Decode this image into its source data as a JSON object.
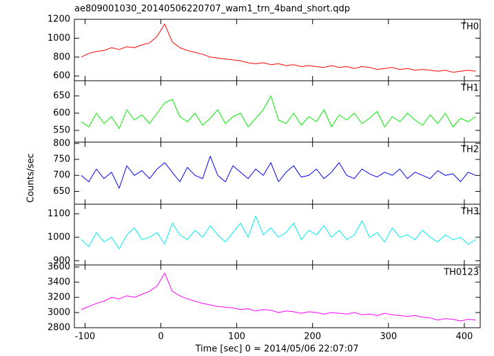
{
  "chart_data": [
    {
      "type": "line",
      "title": "ae809001030_20140506220707_wam1_trn_4band_short.qdp",
      "label": "TH0",
      "color": "#ff0000",
      "x": [
        -105,
        -95,
        -85,
        -75,
        -65,
        -55,
        -45,
        -35,
        -25,
        -15,
        -5,
        5,
        15,
        25,
        35,
        45,
        55,
        65,
        75,
        85,
        95,
        105,
        115,
        125,
        135,
        145,
        155,
        165,
        175,
        185,
        195,
        205,
        215,
        225,
        235,
        245,
        255,
        265,
        275,
        285,
        295,
        305,
        315,
        325,
        335,
        345,
        355,
        365,
        375,
        385,
        395,
        405,
        415
      ],
      "values": [
        800,
        840,
        860,
        870,
        900,
        880,
        910,
        900,
        930,
        950,
        1020,
        1150,
        960,
        900,
        870,
        850,
        830,
        800,
        790,
        780,
        770,
        760,
        740,
        730,
        740,
        720,
        730,
        710,
        720,
        700,
        710,
        700,
        690,
        710,
        690,
        700,
        680,
        700,
        690,
        670,
        680,
        690,
        670,
        680,
        660,
        670,
        660,
        650,
        660,
        640,
        650,
        660,
        650
      ],
      "xlim": [
        -114,
        421
      ],
      "xticks": [
        -100,
        0,
        100,
        200,
        300,
        400
      ],
      "ylim": [
        550,
        1200
      ],
      "yticks": [
        600,
        800,
        1000,
        1200
      ]
    },
    {
      "type": "line",
      "label": "TH1",
      "color": "#00ee00",
      "x": [
        -105,
        -95,
        -85,
        -75,
        -65,
        -55,
        -45,
        -35,
        -25,
        -15,
        -5,
        5,
        15,
        25,
        35,
        45,
        55,
        65,
        75,
        85,
        95,
        105,
        115,
        125,
        135,
        145,
        155,
        165,
        175,
        185,
        195,
        205,
        215,
        225,
        235,
        245,
        255,
        265,
        275,
        285,
        295,
        305,
        315,
        325,
        335,
        345,
        355,
        365,
        375,
        385,
        395,
        405,
        415
      ],
      "values": [
        575,
        560,
        600,
        570,
        590,
        555,
        610,
        580,
        595,
        570,
        600,
        630,
        640,
        590,
        575,
        600,
        565,
        585,
        610,
        570,
        590,
        600,
        560,
        585,
        610,
        650,
        580,
        570,
        600,
        565,
        590,
        575,
        610,
        560,
        595,
        580,
        600,
        570,
        585,
        605,
        560,
        590,
        575,
        600,
        580,
        565,
        595,
        570,
        600,
        560,
        585,
        575,
        590
      ],
      "xlim": [
        -114,
        421
      ],
      "xticks": [
        -100,
        0,
        100,
        200,
        300,
        400
      ],
      "ylim": [
        516,
        694
      ],
      "yticks": [
        550,
        600,
        650
      ]
    },
    {
      "type": "line",
      "label": "TH2",
      "color": "#0000ff",
      "y_label": "Counts/sec",
      "x": [
        -105,
        -95,
        -85,
        -75,
        -65,
        -55,
        -45,
        -35,
        -25,
        -15,
        -5,
        5,
        15,
        25,
        35,
        45,
        55,
        65,
        75,
        85,
        95,
        105,
        115,
        125,
        135,
        145,
        155,
        165,
        175,
        185,
        195,
        205,
        215,
        225,
        235,
        245,
        255,
        265,
        275,
        285,
        295,
        305,
        315,
        325,
        335,
        345,
        355,
        365,
        375,
        385,
        395,
        405,
        415
      ],
      "values": [
        700,
        680,
        720,
        690,
        710,
        660,
        730,
        700,
        715,
        690,
        720,
        740,
        710,
        680,
        725,
        700,
        690,
        760,
        700,
        680,
        730,
        710,
        690,
        720,
        700,
        740,
        680,
        710,
        730,
        695,
        700,
        720,
        690,
        710,
        740,
        700,
        690,
        720,
        705,
        695,
        710,
        700,
        720,
        690,
        710,
        700,
        690,
        715,
        700,
        705,
        680,
        710,
        700
      ],
      "xlim": [
        -114,
        421
      ],
      "xticks": [
        -100,
        0,
        100,
        200,
        300,
        400
      ],
      "ylim": [
        610,
        804
      ],
      "yticks": [
        650,
        700,
        750,
        800
      ]
    },
    {
      "type": "line",
      "label": "TH3",
      "color": "#00eeee",
      "x": [
        -105,
        -95,
        -85,
        -75,
        -65,
        -55,
        -45,
        -35,
        -25,
        -15,
        -5,
        5,
        15,
        25,
        35,
        45,
        55,
        65,
        75,
        85,
        95,
        105,
        115,
        125,
        135,
        145,
        155,
        165,
        175,
        185,
        195,
        205,
        215,
        225,
        235,
        245,
        255,
        265,
        275,
        285,
        295,
        305,
        315,
        325,
        335,
        345,
        355,
        365,
        375,
        385,
        395,
        405,
        415
      ],
      "values": [
        990,
        960,
        1020,
        980,
        1000,
        950,
        1010,
        1040,
        990,
        1000,
        1020,
        970,
        1060,
        1010,
        990,
        1030,
        1000,
        1050,
        1010,
        980,
        1020,
        1060,
        1000,
        1090,
        1010,
        1040,
        1000,
        1020,
        1060,
        990,
        1030,
        1010,
        1050,
        1000,
        1030,
        990,
        1010,
        1070,
        1000,
        1020,
        980,
        1040,
        1000,
        1010,
        990,
        1030,
        1000,
        980,
        1010,
        990,
        1000,
        970,
        990
      ],
      "xlim": [
        -114,
        421
      ],
      "xticks": [
        -100,
        0,
        100,
        200,
        300,
        400
      ],
      "ylim": [
        882,
        1141
      ],
      "yticks": [
        900,
        1000,
        1100
      ]
    },
    {
      "type": "line",
      "label": "TH0123",
      "color": "#ff00ff",
      "x_label": "Time [sec] 0 = 2014/05/06 22:07:07",
      "x": [
        -105,
        -95,
        -85,
        -75,
        -65,
        -55,
        -45,
        -35,
        -25,
        -15,
        -5,
        5,
        15,
        25,
        35,
        45,
        55,
        65,
        75,
        85,
        95,
        105,
        115,
        125,
        135,
        145,
        155,
        165,
        175,
        185,
        195,
        205,
        215,
        225,
        235,
        245,
        255,
        265,
        275,
        285,
        295,
        305,
        315,
        325,
        335,
        345,
        355,
        365,
        375,
        385,
        395,
        405,
        415
      ],
      "values": [
        3040,
        3080,
        3120,
        3150,
        3200,
        3180,
        3220,
        3200,
        3240,
        3280,
        3350,
        3520,
        3280,
        3220,
        3180,
        3150,
        3120,
        3100,
        3080,
        3070,
        3060,
        3040,
        3050,
        3020,
        3040,
        3030,
        3000,
        3020,
        3010,
        2990,
        3010,
        3000,
        2980,
        3000,
        2990,
        2980,
        3000,
        2970,
        2980,
        2960,
        2990,
        2970,
        2960,
        2950,
        2960,
        2940,
        2930,
        2900,
        2920,
        2910,
        2890,
        2910,
        2900
      ],
      "xlim": [
        -114,
        421
      ],
      "xticks": [
        -100,
        0,
        100,
        200,
        300,
        400
      ],
      "ylim": [
        2800,
        3627
      ],
      "yticks": [
        2800,
        3000,
        3200,
        3400,
        3600
      ]
    }
  ]
}
